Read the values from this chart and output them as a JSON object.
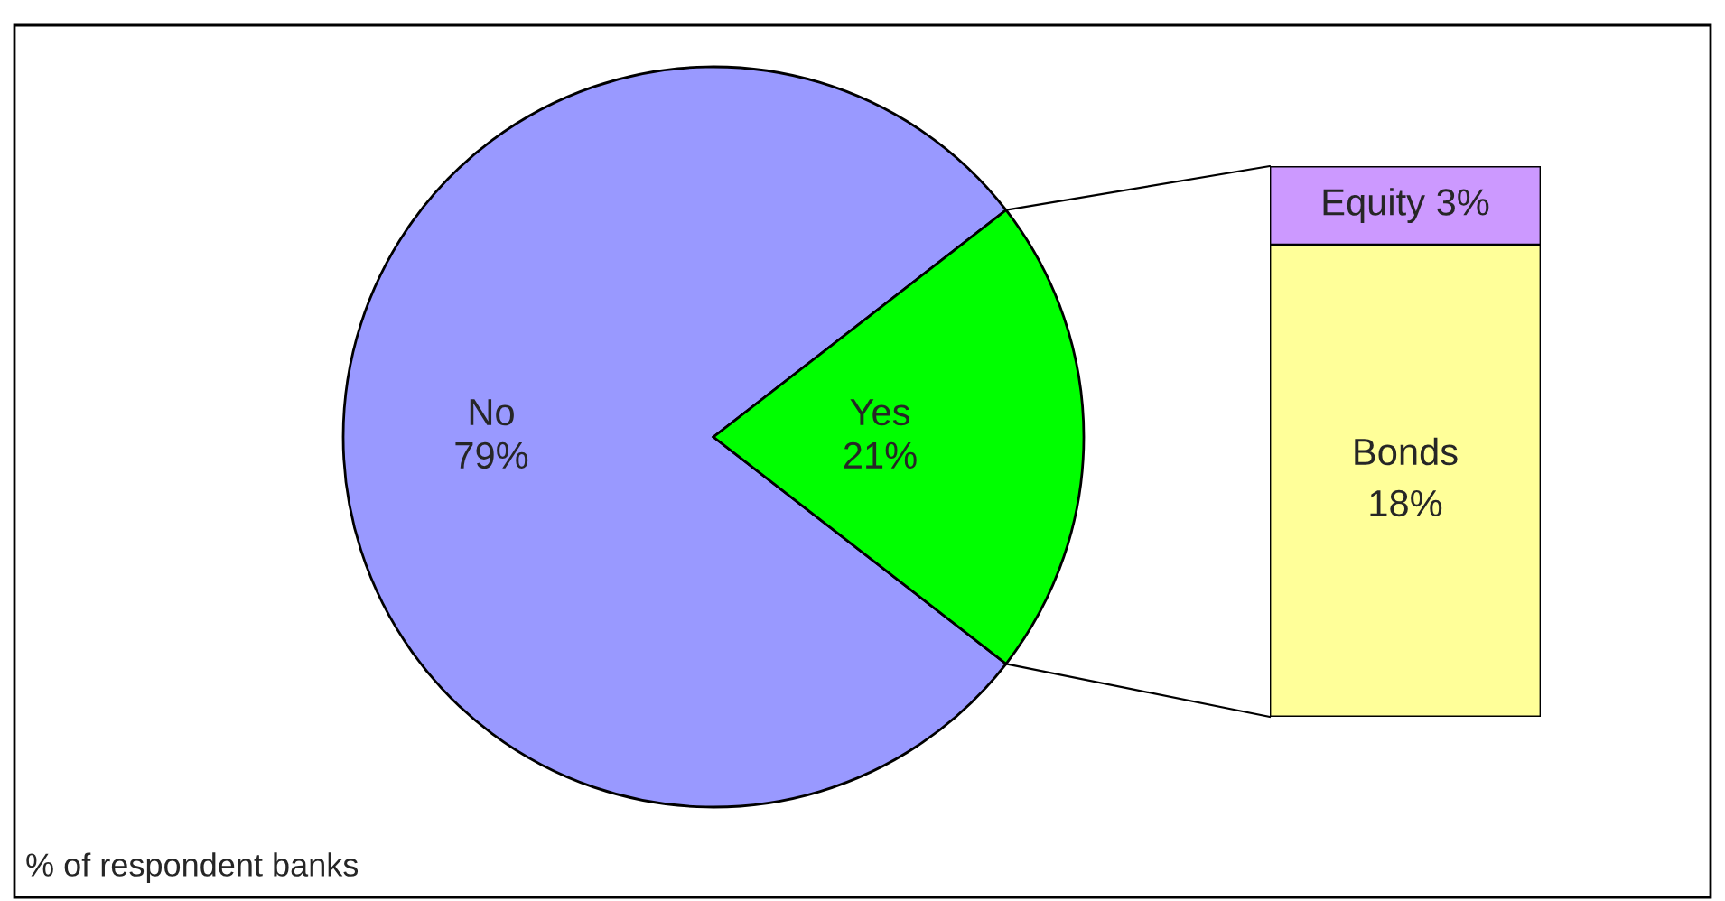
{
  "chart_data": [
    {
      "type": "pie",
      "categories": [
        "No",
        "Yes"
      ],
      "values": [
        79,
        21
      ],
      "colors": [
        "#9999ff",
        "#00ff00"
      ],
      "value_labels": [
        "79%",
        "21%"
      ],
      "annotations": [
        "% of respondent banks"
      ]
    },
    {
      "type": "bar",
      "stacked": true,
      "categories": [
        null
      ],
      "series": [
        {
          "name": "Bonds",
          "color": "#ffff99",
          "values": [
            18
          ],
          "value_labels": [
            "18%"
          ]
        },
        {
          "name": "Equity",
          "color": "#cc99ff",
          "values": [
            3
          ],
          "value_labels": [
            "3%"
          ]
        }
      ]
    }
  ]
}
